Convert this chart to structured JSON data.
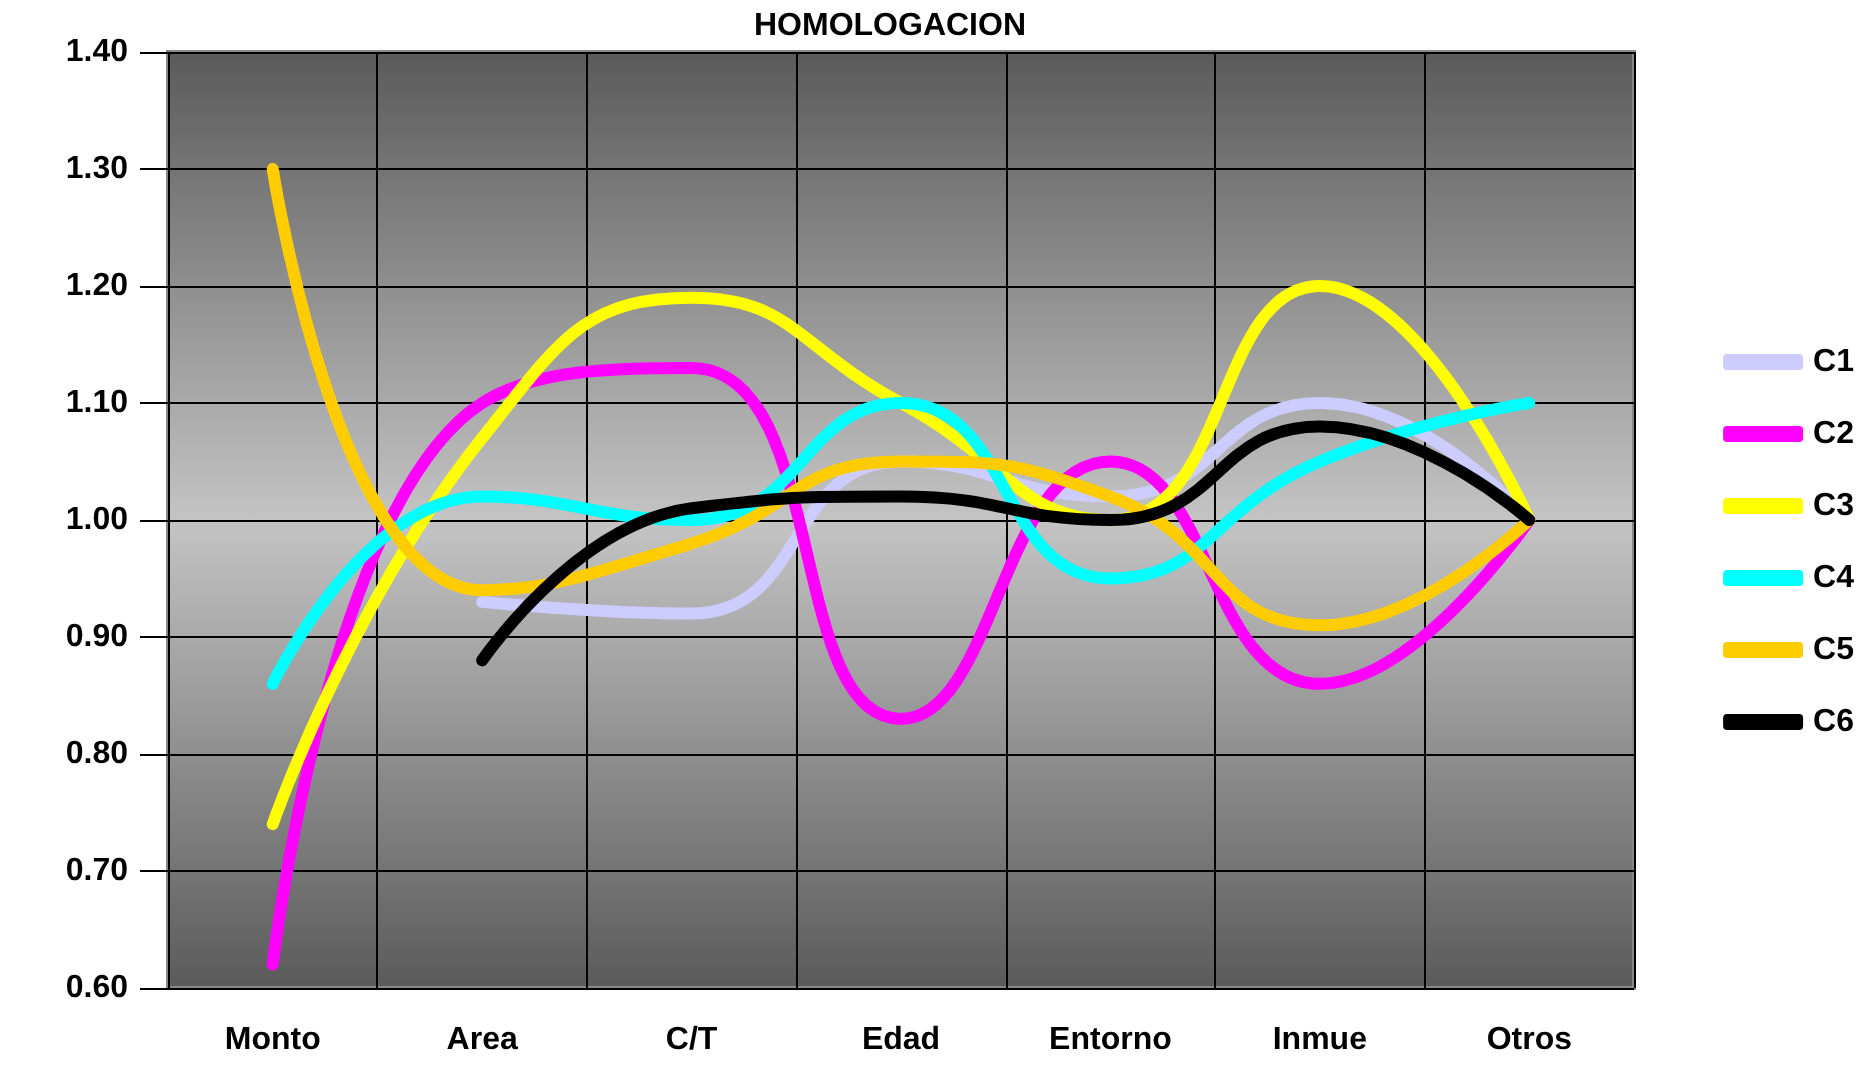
{
  "chart_data": {
    "type": "line",
    "title": "HOMOLOGACION",
    "categories": [
      "Monto",
      "Area",
      "C/T",
      "Edad",
      "Entorno",
      "Inmue",
      "Otros"
    ],
    "series": [
      {
        "name": "C1",
        "color": "#ccccff",
        "values": [
          null,
          0.93,
          0.92,
          1.05,
          1.02,
          1.1,
          1.0
        ]
      },
      {
        "name": "C2",
        "color": "#ff00ff",
        "values": [
          0.62,
          1.1,
          1.13,
          0.83,
          1.05,
          0.86,
          1.0
        ]
      },
      {
        "name": "C3",
        "color": "#ffff00",
        "values": [
          0.74,
          1.07,
          1.19,
          1.1,
          1.0,
          1.2,
          1.0
        ]
      },
      {
        "name": "C4",
        "color": "#00ffff",
        "values": [
          0.86,
          1.02,
          1.0,
          1.1,
          0.95,
          1.05,
          1.1
        ]
      },
      {
        "name": "C5",
        "color": "#ffcc00",
        "values": [
          1.3,
          0.94,
          0.98,
          1.05,
          1.02,
          0.91,
          1.0
        ]
      },
      {
        "name": "C6",
        "color": "#000000",
        "values": [
          null,
          0.88,
          1.01,
          1.02,
          1.0,
          1.08,
          1.0
        ]
      }
    ],
    "ylim": [
      0.6,
      1.4
    ],
    "yticks": [
      {
        "value": 0.6,
        "label": "0.60"
      },
      {
        "value": 0.7,
        "label": "0.70"
      },
      {
        "value": 0.8,
        "label": "0.80"
      },
      {
        "value": 0.9,
        "label": "0.90"
      },
      {
        "value": 1.0,
        "label": "1.00"
      },
      {
        "value": 1.1,
        "label": "1.10"
      },
      {
        "value": 1.2,
        "label": "1.20"
      },
      {
        "value": 1.3,
        "label": "1.30"
      },
      {
        "value": 1.4,
        "label": "1.40"
      }
    ],
    "grid": true,
    "legend": "right",
    "marker": "none"
  }
}
